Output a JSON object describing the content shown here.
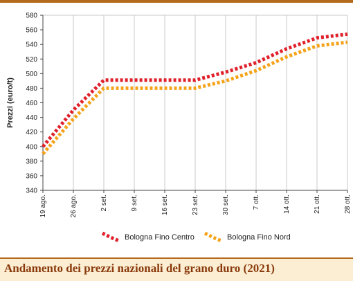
{
  "caption": "Andamento dei prezzi nazionali del grano duro (2021)",
  "chart_data": {
    "type": "line",
    "title": "",
    "xlabel": "",
    "ylabel": "Prezzi (euro/t)",
    "ylim": [
      340,
      580
    ],
    "yticks": [
      340,
      360,
      380,
      400,
      420,
      440,
      460,
      480,
      500,
      520,
      540,
      560,
      580
    ],
    "categories": [
      "19 ago.",
      "26 ago.",
      "2 set.",
      "9 set.",
      "16 set.",
      "23 set.",
      "30 set.",
      "7 ott.",
      "14 ott.",
      "21 ott.",
      "28 ott."
    ],
    "grid": "vertical",
    "legend_position": "bottom",
    "series": [
      {
        "name": "Bologna Fino Centro",
        "color": "#e0202a",
        "values": [
          400,
          450,
          491,
          491,
          491,
          491,
          502,
          515,
          534,
          549,
          554
        ]
      },
      {
        "name": "Bologna Fino Nord",
        "color": "#f5a31a",
        "values": [
          390,
          438,
          480,
          480,
          480,
          480,
          490,
          504,
          523,
          538,
          543
        ]
      }
    ]
  }
}
